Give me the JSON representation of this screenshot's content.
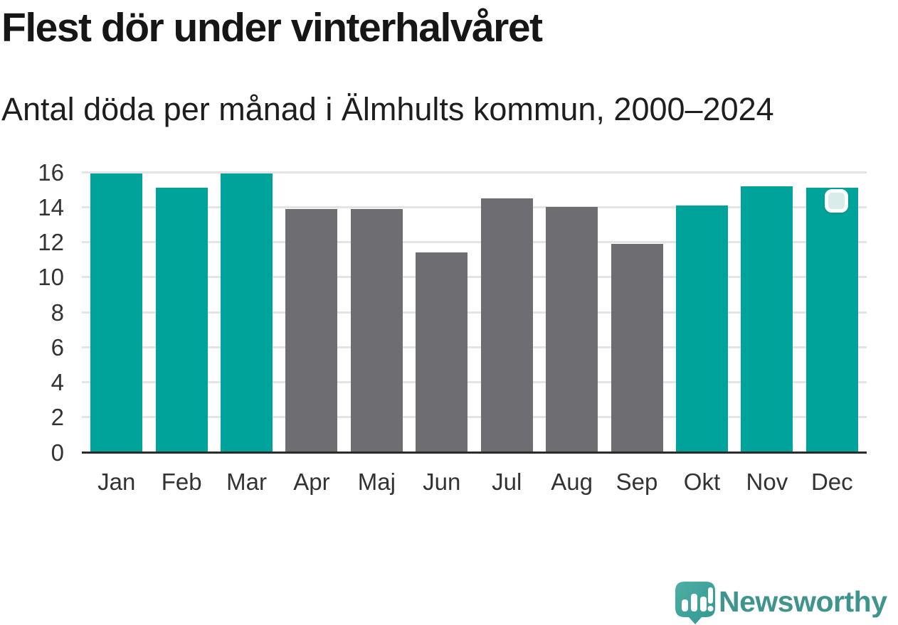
{
  "header": {
    "title": "Flest dör under vinterhalvåret",
    "subtitle": "Antal döda per månad i Älmhults kommun, 2000–2024"
  },
  "chart_data": {
    "type": "bar",
    "title": "Flest dör under vinterhalvåret",
    "subtitle": "Antal döda per månad i Älmhults kommun, 2000–2024",
    "categories": [
      "Jan",
      "Feb",
      "Mar",
      "Apr",
      "Maj",
      "Jun",
      "Jul",
      "Aug",
      "Sep",
      "Okt",
      "Nov",
      "Dec"
    ],
    "values": [
      15.9,
      15.1,
      15.9,
      13.9,
      13.9,
      11.4,
      14.5,
      14.0,
      11.9,
      14.1,
      15.2,
      15.1
    ],
    "highlight_indices": [
      0,
      1,
      2,
      9,
      10,
      11
    ],
    "highlight_color": "#00A39A",
    "base_color": "#6D6D72",
    "xlabel": "",
    "ylabel": "",
    "ylim": [
      0,
      16
    ],
    "yticks": [
      0,
      2,
      4,
      6,
      8,
      10,
      12,
      14,
      16
    ],
    "grid": "horizontal",
    "gridline_color": "#E4E4E4",
    "axis_color": "#2B2B2B",
    "tick_label_color": "#333333",
    "legend": "none"
  },
  "annotations": {
    "selection_handle": {
      "attached_to": "Dec",
      "fill": "#D9ECEA",
      "border": "#FBFEFE"
    }
  },
  "branding": {
    "wordmark": "Newsworthy",
    "logo_icon": "newsworthy-speech-bubble-chart-icon",
    "wordmark_color": "#3F948E",
    "bubble_color_top": "#4FAEA6",
    "bubble_color_bottom": "#31988F",
    "logo_glyph_color": "#FFFFFF"
  }
}
